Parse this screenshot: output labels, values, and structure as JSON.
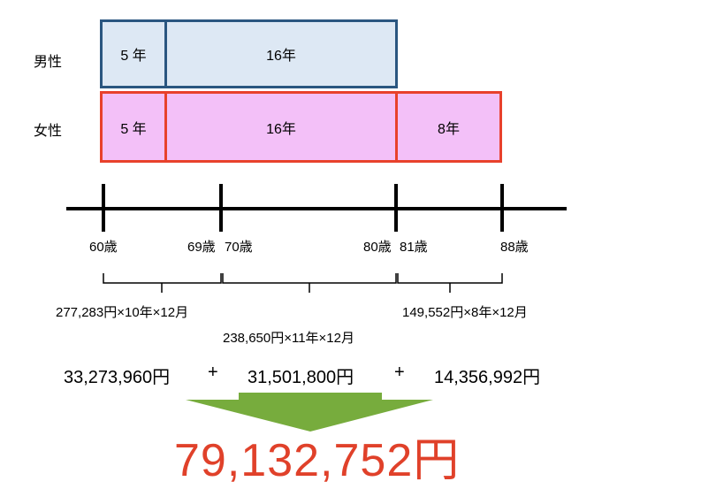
{
  "rows": {
    "male": {
      "label": "男性",
      "segments": [
        "5 年",
        "16年"
      ]
    },
    "female": {
      "label": "女性",
      "segments": [
        "5 年",
        "16年",
        "8年"
      ]
    }
  },
  "timeline": {
    "ticks": [
      "60歳",
      "69歳",
      "70歳",
      "80歳",
      "81歳",
      "88歳"
    ]
  },
  "formulas": {
    "first": "277,283円×10年×12月",
    "second": "238,650円×11年×12月",
    "third": "149,552円×8年×12月"
  },
  "amounts": {
    "first": "33,273,960円",
    "plus1": "+",
    "second": "31,501,800円",
    "plus2": "+",
    "third": "14,356,992円"
  },
  "total": "79,132,752円",
  "colors": {
    "male_fill": "#dde8f4",
    "male_border": "#2a5680",
    "female_fill": "#f3c0f8",
    "female_border": "#e8412c",
    "arrow": "#77ac3d",
    "total_text": "#e0412a"
  }
}
